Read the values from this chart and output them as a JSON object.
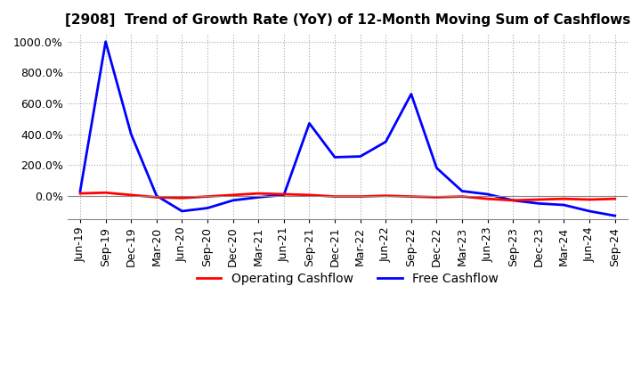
{
  "title": "[2908]  Trend of Growth Rate (YoY) of 12-Month Moving Sum of Cashflows",
  "legend": [
    "Operating Cashflow",
    "Free Cashflow"
  ],
  "legend_colors": [
    "#ff0000",
    "#0000ff"
  ],
  "ylim": [
    -150,
    1050
  ],
  "yticks": [
    0,
    200,
    400,
    600,
    800,
    1000
  ],
  "ytick_labels": [
    "0.0%",
    "200.0%",
    "400.0%",
    "600.0%",
    "800.0%",
    "1000.0%"
  ],
  "x_labels": [
    "Jun-19",
    "Sep-19",
    "Dec-19",
    "Mar-20",
    "Jun-20",
    "Sep-20",
    "Dec-20",
    "Mar-21",
    "Jun-21",
    "Sep-21",
    "Dec-21",
    "Mar-22",
    "Jun-22",
    "Sep-22",
    "Dec-22",
    "Mar-23",
    "Jun-23",
    "Sep-23",
    "Dec-23",
    "Mar-24",
    "Jun-24",
    "Sep-24"
  ],
  "operating_cf": [
    15,
    20,
    5,
    -10,
    -15,
    -5,
    5,
    15,
    10,
    5,
    -5,
    -5,
    0,
    -5,
    -10,
    -5,
    -20,
    -30,
    -25,
    -20,
    -25,
    -20
  ],
  "free_cf": [
    30,
    1000,
    400,
    0,
    -100,
    -80,
    -30,
    -10,
    5,
    470,
    250,
    255,
    350,
    660,
    180,
    30,
    10,
    -30,
    -50,
    -60,
    -100,
    -130
  ],
  "grid_color": "#aaaaaa",
  "grid_style": "dotted",
  "bg_color": "#ffffff",
  "plot_bg_color": "#ffffff",
  "title_fontsize": 11,
  "tick_fontsize": 9,
  "legend_fontsize": 10
}
